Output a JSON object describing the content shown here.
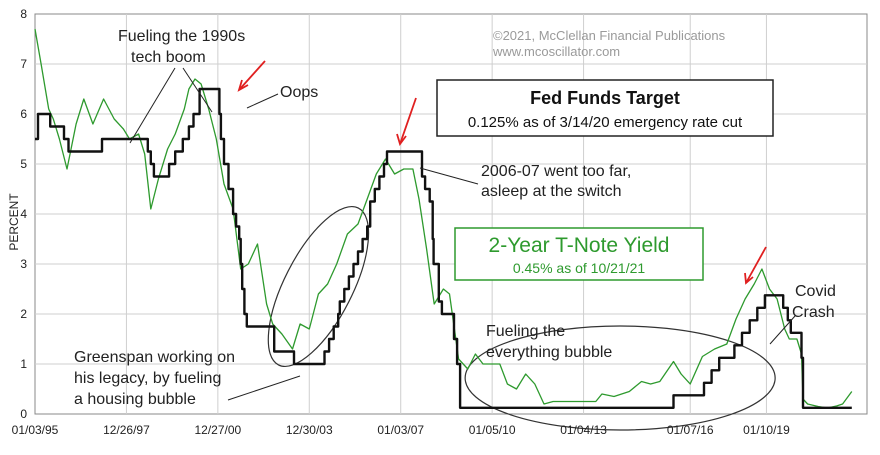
{
  "chart_data": {
    "type": "line",
    "ylabel": "PERCENT",
    "ylim": [
      0,
      8
    ],
    "yticks": [
      "0",
      "1",
      "2",
      "3",
      "4",
      "5",
      "6",
      "7",
      "8"
    ],
    "xlim": [
      1995.0,
      2022.3
    ],
    "xticks": [
      {
        "x": 1995.0,
        "label": "01/03/95"
      },
      {
        "x": 1998.0,
        "label": "12/26/97"
      },
      {
        "x": 2001.0,
        "label": "12/27/00"
      },
      {
        "x": 2004.0,
        "label": "12/30/03"
      },
      {
        "x": 2007.0,
        "label": "01/03/07"
      },
      {
        "x": 2010.0,
        "label": "01/05/10"
      },
      {
        "x": 2013.0,
        "label": "01/04/13"
      },
      {
        "x": 2016.5,
        "label": "01/07/16"
      },
      {
        "x": 2019.0,
        "label": "01/10/19"
      }
    ],
    "grid": true,
    "copyright": [
      "©2021, McClellan Financial Publications",
      "www.mcoscillator.com"
    ],
    "fed_box": {
      "title": "Fed Funds Target",
      "subtitle": "0.125% as of 3/14/20 emergency rate cut"
    },
    "tnote_box": {
      "title": "2-Year T-Note Yield",
      "subtitle": "0.45% as of 10/21/21"
    },
    "annotations": {
      "tech_boom": [
        "Fueling the 1990s",
        "tech boom"
      ],
      "oops": "Oops",
      "too_far": [
        "2006-07 went too far,",
        "asleep at the switch"
      ],
      "greenspan": [
        "Greenspan working on",
        "his legacy, by fueling",
        "a housing bubble"
      ],
      "everything": [
        "Fueling the",
        "everything bubble"
      ],
      "covid": [
        "Covid",
        "Crash"
      ]
    },
    "colors": {
      "tnote": "#2e9a2e",
      "fed": "#111111",
      "arrow": "#e02020",
      "grid": "#cfcfcf",
      "plot_bg": "#ffffff"
    },
    "series": [
      {
        "key": "fed",
        "points": [
          [
            1995.0,
            5.5
          ],
          [
            1995.1,
            6.0
          ],
          [
            1995.5,
            5.75
          ],
          [
            1995.95,
            5.5
          ],
          [
            1996.1,
            5.25
          ],
          [
            1997.2,
            5.5
          ],
          [
            1998.7,
            5.25
          ],
          [
            1998.8,
            5.0
          ],
          [
            1998.9,
            4.75
          ],
          [
            1999.4,
            5.0
          ],
          [
            1999.6,
            5.25
          ],
          [
            1999.85,
            5.5
          ],
          [
            2000.05,
            5.75
          ],
          [
            2000.2,
            6.0
          ],
          [
            2000.4,
            6.5
          ],
          [
            2001.05,
            6.0
          ],
          [
            2001.1,
            5.5
          ],
          [
            2001.2,
            5.0
          ],
          [
            2001.35,
            4.5
          ],
          [
            2001.5,
            4.0
          ],
          [
            2001.6,
            3.75
          ],
          [
            2001.7,
            3.5
          ],
          [
            2001.75,
            3.0
          ],
          [
            2001.8,
            2.5
          ],
          [
            2001.87,
            2.0
          ],
          [
            2001.95,
            1.75
          ],
          [
            2002.85,
            1.25
          ],
          [
            2003.5,
            1.0
          ],
          [
            2004.5,
            1.25
          ],
          [
            2004.65,
            1.5
          ],
          [
            2004.8,
            1.75
          ],
          [
            2004.95,
            2.0
          ],
          [
            2005.0,
            2.25
          ],
          [
            2005.15,
            2.5
          ],
          [
            2005.3,
            2.75
          ],
          [
            2005.45,
            3.0
          ],
          [
            2005.6,
            3.25
          ],
          [
            2005.75,
            3.5
          ],
          [
            2005.9,
            3.75
          ],
          [
            2006.0,
            4.25
          ],
          [
            2006.15,
            4.5
          ],
          [
            2006.3,
            4.75
          ],
          [
            2006.45,
            5.0
          ],
          [
            2006.55,
            5.25
          ],
          [
            2007.7,
            4.75
          ],
          [
            2007.8,
            4.5
          ],
          [
            2007.95,
            4.25
          ],
          [
            2008.05,
            3.5
          ],
          [
            2008.08,
            3.0
          ],
          [
            2008.25,
            2.25
          ],
          [
            2008.35,
            2.0
          ],
          [
            2008.75,
            1.5
          ],
          [
            2008.85,
            1.0
          ],
          [
            2008.95,
            0.125
          ],
          [
            2015.95,
            0.375
          ],
          [
            2016.95,
            0.625
          ],
          [
            2017.2,
            0.875
          ],
          [
            2017.45,
            1.125
          ],
          [
            2017.95,
            1.375
          ],
          [
            2018.2,
            1.625
          ],
          [
            2018.45,
            1.875
          ],
          [
            2018.7,
            2.125
          ],
          [
            2018.95,
            2.375
          ],
          [
            2019.55,
            2.125
          ],
          [
            2019.7,
            1.875
          ],
          [
            2019.8,
            1.625
          ],
          [
            2020.15,
            1.125
          ],
          [
            2020.2,
            0.125
          ],
          [
            2021.8,
            0.125
          ]
        ]
      },
      {
        "key": "tnote",
        "points": [
          [
            1995.0,
            7.7
          ],
          [
            1995.2,
            7.0
          ],
          [
            1995.45,
            6.1
          ],
          [
            1995.6,
            5.9
          ],
          [
            1995.8,
            5.5
          ],
          [
            1996.05,
            4.9
          ],
          [
            1996.35,
            5.8
          ],
          [
            1996.6,
            6.3
          ],
          [
            1996.9,
            5.8
          ],
          [
            1997.25,
            6.3
          ],
          [
            1997.6,
            5.9
          ],
          [
            1997.9,
            5.7
          ],
          [
            1998.1,
            5.5
          ],
          [
            1998.4,
            5.6
          ],
          [
            1998.6,
            5.2
          ],
          [
            1998.8,
            4.1
          ],
          [
            1999.05,
            4.7
          ],
          [
            1999.35,
            5.3
          ],
          [
            1999.6,
            5.6
          ],
          [
            1999.9,
            6.1
          ],
          [
            2000.05,
            6.5
          ],
          [
            2000.25,
            6.7
          ],
          [
            2000.45,
            6.6
          ],
          [
            2000.7,
            6.1
          ],
          [
            2000.95,
            5.5
          ],
          [
            2001.2,
            4.6
          ],
          [
            2001.5,
            4.1
          ],
          [
            2001.75,
            2.9
          ],
          [
            2002.0,
            3.0
          ],
          [
            2002.3,
            3.4
          ],
          [
            2002.6,
            2.2
          ],
          [
            2002.8,
            1.8
          ],
          [
            2003.1,
            1.6
          ],
          [
            2003.45,
            1.3
          ],
          [
            2003.7,
            1.8
          ],
          [
            2004.0,
            1.7
          ],
          [
            2004.3,
            2.4
          ],
          [
            2004.6,
            2.6
          ],
          [
            2004.9,
            3.0
          ],
          [
            2005.25,
            3.6
          ],
          [
            2005.6,
            3.8
          ],
          [
            2005.9,
            4.3
          ],
          [
            2006.2,
            4.8
          ],
          [
            2006.5,
            5.1
          ],
          [
            2006.8,
            4.8
          ],
          [
            2007.1,
            4.9
          ],
          [
            2007.4,
            4.9
          ],
          [
            2007.6,
            4.3
          ],
          [
            2007.85,
            3.3
          ],
          [
            2008.1,
            2.2
          ],
          [
            2008.4,
            2.5
          ],
          [
            2008.6,
            2.4
          ],
          [
            2008.9,
            1.1
          ],
          [
            2009.2,
            0.9
          ],
          [
            2009.45,
            1.2
          ],
          [
            2009.7,
            1.0
          ],
          [
            2010.0,
            1.0
          ],
          [
            2010.25,
            1.0
          ],
          [
            2010.5,
            0.6
          ],
          [
            2010.8,
            0.5
          ],
          [
            2011.1,
            0.8
          ],
          [
            2011.4,
            0.6
          ],
          [
            2011.7,
            0.2
          ],
          [
            2012.0,
            0.25
          ],
          [
            2012.5,
            0.25
          ],
          [
            2013.0,
            0.25
          ],
          [
            2013.4,
            0.25
          ],
          [
            2013.6,
            0.4
          ],
          [
            2014.0,
            0.35
          ],
          [
            2014.5,
            0.45
          ],
          [
            2014.9,
            0.65
          ],
          [
            2015.2,
            0.6
          ],
          [
            2015.5,
            0.65
          ],
          [
            2015.95,
            1.05
          ],
          [
            2016.2,
            0.8
          ],
          [
            2016.5,
            0.6
          ],
          [
            2016.9,
            1.15
          ],
          [
            2017.3,
            1.3
          ],
          [
            2017.7,
            1.4
          ],
          [
            2018.0,
            1.9
          ],
          [
            2018.3,
            2.3
          ],
          [
            2018.6,
            2.6
          ],
          [
            2018.85,
            2.9
          ],
          [
            2019.1,
            2.5
          ],
          [
            2019.35,
            2.3
          ],
          [
            2019.6,
            1.7
          ],
          [
            2019.75,
            1.5
          ],
          [
            2020.0,
            1.5
          ],
          [
            2020.15,
            1.2
          ],
          [
            2020.2,
            0.3
          ],
          [
            2020.35,
            0.2
          ],
          [
            2020.7,
            0.15
          ],
          [
            2021.0,
            0.12
          ],
          [
            2021.3,
            0.16
          ],
          [
            2021.5,
            0.2
          ],
          [
            2021.8,
            0.45
          ]
        ]
      }
    ]
  }
}
